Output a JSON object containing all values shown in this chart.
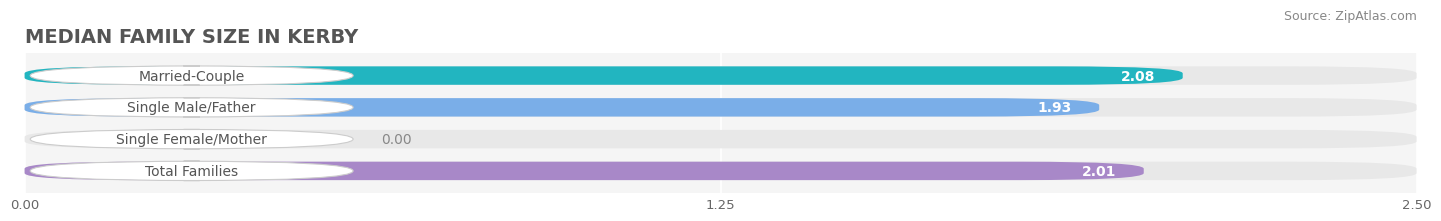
{
  "title": "MEDIAN FAMILY SIZE IN KERBY",
  "source": "Source: ZipAtlas.com",
  "categories": [
    "Married-Couple",
    "Single Male/Father",
    "Single Female/Mother",
    "Total Families"
  ],
  "values": [
    2.08,
    1.93,
    0.0,
    2.01
  ],
  "bar_colors": [
    "#22b5c0",
    "#7aaee8",
    "#f4a8bc",
    "#a888c8"
  ],
  "xlim": [
    0,
    2.5
  ],
  "xticks": [
    0.0,
    1.25,
    2.5
  ],
  "xtick_labels": [
    "0.00",
    "1.25",
    "2.50"
  ],
  "bar_height": 0.58,
  "bg_bar_color": "#e8e8e8",
  "label_bg_color": "#ffffff",
  "label_text_color": "#555555",
  "value_text_color": "#ffffff",
  "label_fontsize": 10,
  "value_fontsize": 10,
  "title_fontsize": 14,
  "source_fontsize": 9,
  "title_color": "#555555",
  "source_color": "#888888",
  "grid_color": "#d8d8d8"
}
